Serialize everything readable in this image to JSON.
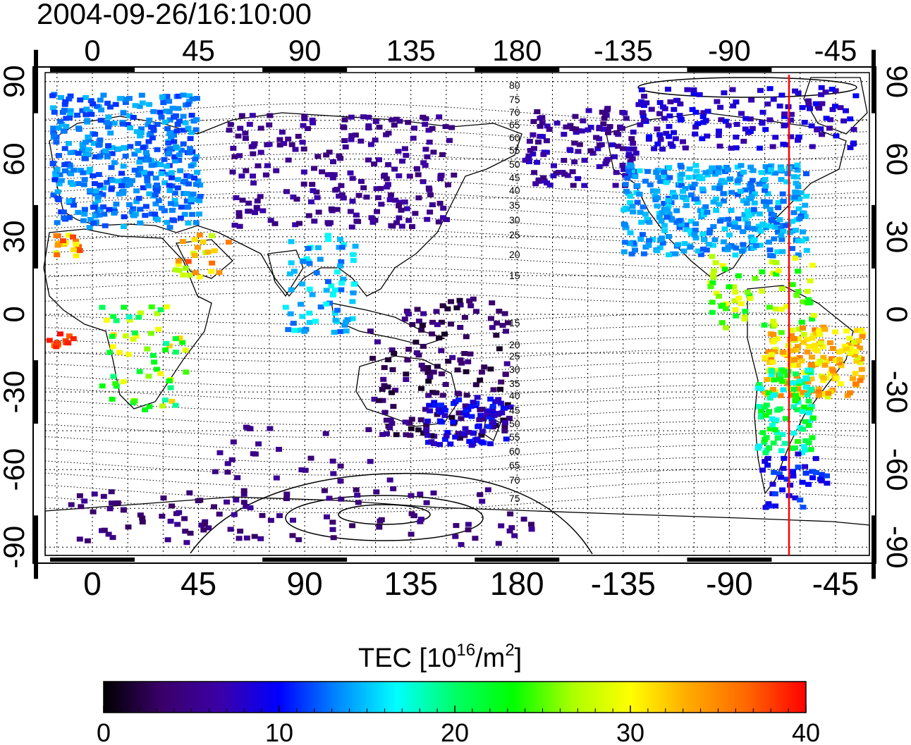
{
  "title": "2004-09-26/16:10:00",
  "map": {
    "type": "heatmap",
    "x_tick_labels": [
      "0",
      "45",
      "90",
      "135",
      "180",
      "-135",
      "-90",
      "-45"
    ],
    "y_tick_labels": [
      "90",
      "60",
      "30",
      "0",
      "-30",
      "-60",
      "-90"
    ],
    "contour_labels_north": [
      "80",
      "75",
      "70",
      "65",
      "60",
      "55",
      "50",
      "45",
      "40",
      "35",
      "30",
      "25",
      "20",
      "15"
    ],
    "contour_labels_south": [
      "15",
      "20",
      "25",
      "30",
      "35",
      "40",
      "45",
      "50",
      "55",
      "60",
      "65",
      "70",
      "75"
    ],
    "marker_line": {
      "color": "#ff0000"
    }
  },
  "colorbar": {
    "title_prefix": "TEC  [10",
    "title_exp1": "16",
    "title_mid": "/m",
    "title_exp2": "2",
    "title_suffix": "]",
    "tick_labels": [
      "0",
      "10",
      "20",
      "30",
      "40"
    ],
    "min": 0,
    "max": 40,
    "colors": [
      "#000000",
      "#3a0069",
      "#3b00a8",
      "#0000ff",
      "#0088ff",
      "#00ffff",
      "#00ff66",
      "#00ff00",
      "#aaff00",
      "#ffff00",
      "#ffaa00",
      "#ff6600",
      "#ff0000"
    ]
  }
}
